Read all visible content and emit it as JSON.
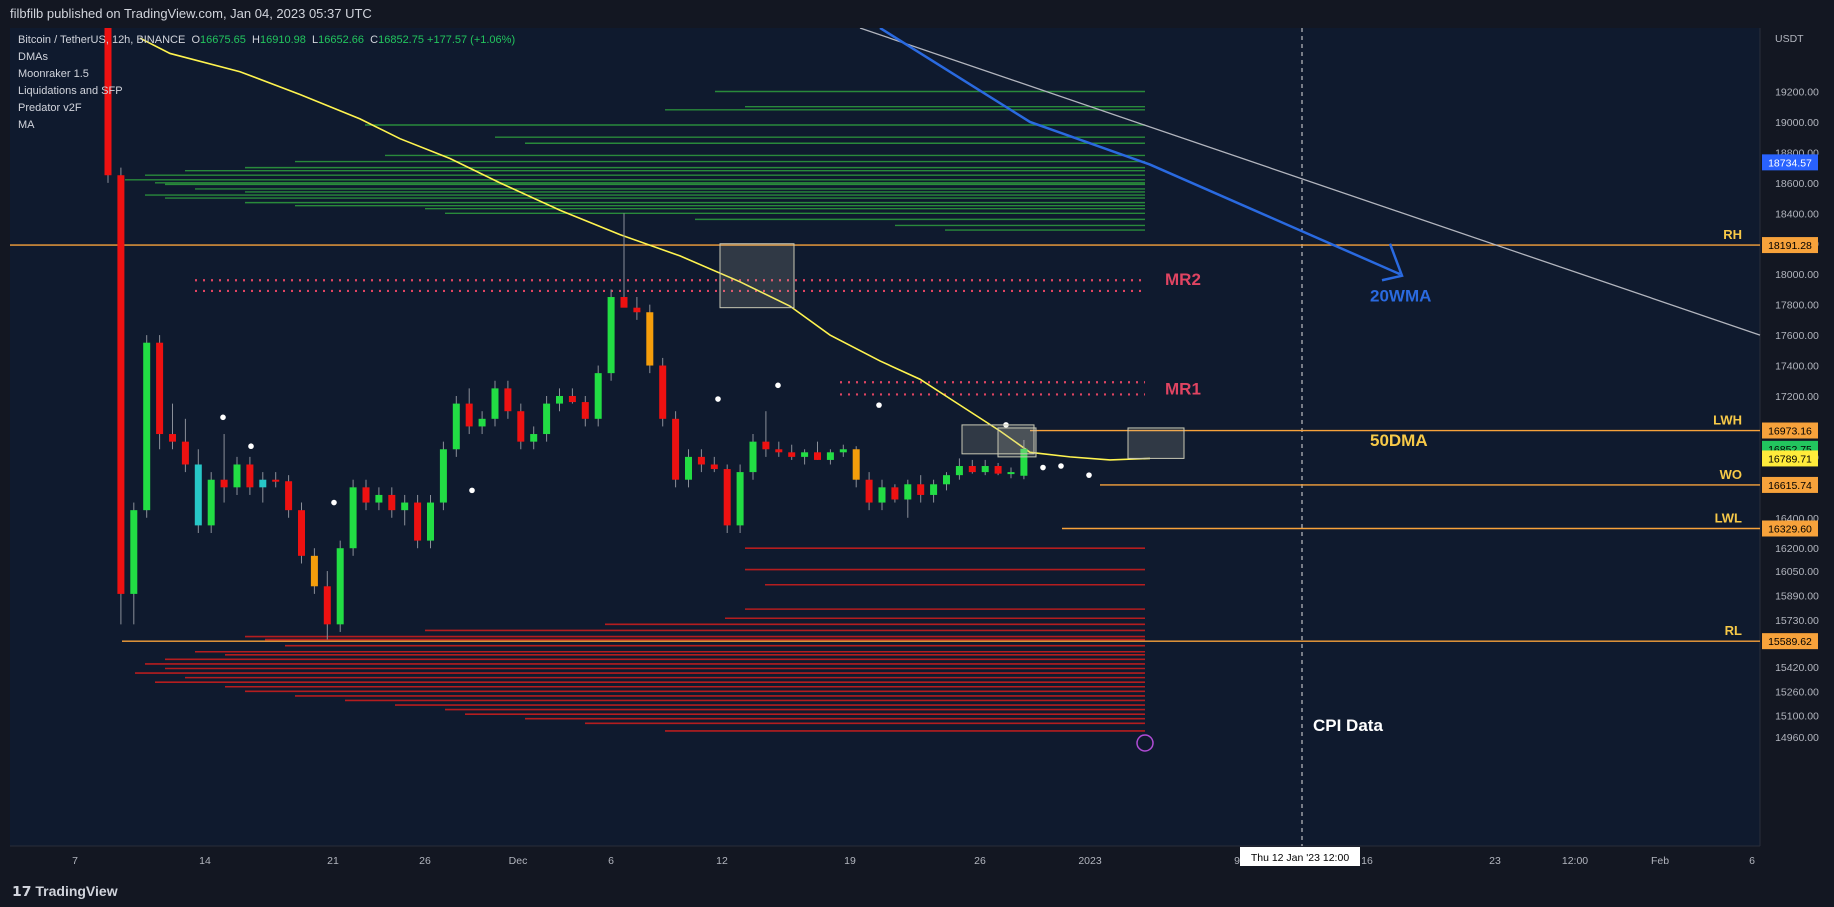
{
  "header": {
    "publisher_line": "filbfilb published on TradingView.com, Jan 04, 2023 05:37 UTC"
  },
  "footer": {
    "brand": "TradingView"
  },
  "legend": {
    "symbol": "Bitcoin / TetherUS, 12h, BINANCE",
    "ohlc": {
      "o_label": "O",
      "o": "16675.65",
      "h_label": "H",
      "h": "16910.98",
      "l_label": "L",
      "l": "16652.66",
      "c_label": "C",
      "c": "16852.75",
      "chg": "+177.57 (+1.06%)"
    },
    "indicators": [
      "DMAs",
      "Moonraker 1.5",
      "Liquidations and SFP",
      "Predator v2F",
      "MA"
    ]
  },
  "chart_data": {
    "type": "candlestick",
    "currency_label": "USDT",
    "y_ticks": [
      19200,
      19000,
      18800,
      18600,
      18400,
      18200,
      18000,
      17800,
      17600,
      17400,
      17200,
      16800,
      16400,
      16200,
      16050,
      15890,
      15730,
      15420,
      15260,
      15100,
      14960
    ],
    "ylim": [
      14900,
      19300
    ],
    "x_ticks": [
      "7",
      "14",
      "21",
      "26",
      "Dec",
      "6",
      "12",
      "19",
      "26",
      "2023",
      "9",
      "16",
      "23",
      "12:00",
      "Feb",
      "6"
    ],
    "crosshair_date": "Thu 12 Jan '23   12:00",
    "levels": [
      {
        "label": "RH",
        "value": 18191.28
      },
      {
        "label": "LWH",
        "value": 16973.16
      },
      {
        "label": "WO",
        "value": 16615.74
      },
      {
        "label": "LWL",
        "value": 16329.6
      },
      {
        "label": "RL",
        "value": 15589.62
      }
    ],
    "price_tags": [
      {
        "value": 18734.57,
        "text": "18734.57",
        "color": "#2962ff",
        "text_color": "#ffffff"
      },
      {
        "value": 16852.75,
        "text": "16852.75",
        "color": "#22c55e",
        "text_color": "#000000"
      },
      {
        "value": 16789.71,
        "text": "16789.71",
        "color": "#ffeb3b",
        "text_color": "#000000"
      }
    ],
    "annotations": [
      "MR2",
      "MR1",
      "20WMA",
      "50DMA",
      "CPI Data"
    ],
    "candles": [
      {
        "o": 19900,
        "h": 19900,
        "l": 18600,
        "c": 18650
      },
      {
        "o": 18650,
        "h": 18700,
        "l": 15700,
        "c": 15900
      },
      {
        "o": 15900,
        "h": 16500,
        "l": 15700,
        "c": 16450
      },
      {
        "o": 16450,
        "h": 17600,
        "l": 16400,
        "c": 17550
      },
      {
        "o": 17550,
        "h": 17600,
        "l": 16850,
        "c": 16950
      },
      {
        "o": 16950,
        "h": 17150,
        "l": 16850,
        "c": 16900
      },
      {
        "o": 16900,
        "h": 17050,
        "l": 16700,
        "c": 16750
      },
      {
        "o": 16750,
        "h": 16850,
        "l": 16300,
        "c": 16350
      },
      {
        "o": 16350,
        "h": 16700,
        "l": 16300,
        "c": 16650
      },
      {
        "o": 16650,
        "h": 16950,
        "l": 16500,
        "c": 16600
      },
      {
        "o": 16600,
        "h": 16800,
        "l": 16550,
        "c": 16750
      },
      {
        "o": 16750,
        "h": 16800,
        "l": 16550,
        "c": 16600
      },
      {
        "o": 16600,
        "h": 16700,
        "l": 16500,
        "c": 16650
      },
      {
        "o": 16650,
        "h": 16700,
        "l": 16600,
        "c": 16640
      },
      {
        "o": 16640,
        "h": 16680,
        "l": 16400,
        "c": 16450
      },
      {
        "o": 16450,
        "h": 16500,
        "l": 16100,
        "c": 16150
      },
      {
        "o": 16150,
        "h": 16200,
        "l": 15900,
        "c": 15950
      },
      {
        "o": 15950,
        "h": 16050,
        "l": 15600,
        "c": 15700
      },
      {
        "o": 15700,
        "h": 16250,
        "l": 15650,
        "c": 16200
      },
      {
        "o": 16200,
        "h": 16650,
        "l": 16150,
        "c": 16600
      },
      {
        "o": 16600,
        "h": 16650,
        "l": 16450,
        "c": 16500
      },
      {
        "o": 16500,
        "h": 16600,
        "l": 16450,
        "c": 16550
      },
      {
        "o": 16550,
        "h": 16600,
        "l": 16400,
        "c": 16450
      },
      {
        "o": 16450,
        "h": 16550,
        "l": 16350,
        "c": 16500
      },
      {
        "o": 16500,
        "h": 16550,
        "l": 16200,
        "c": 16250
      },
      {
        "o": 16250,
        "h": 16550,
        "l": 16200,
        "c": 16500
      },
      {
        "o": 16500,
        "h": 16900,
        "l": 16450,
        "c": 16850
      },
      {
        "o": 16850,
        "h": 17200,
        "l": 16800,
        "c": 17150
      },
      {
        "o": 17150,
        "h": 17250,
        "l": 16950,
        "c": 17000
      },
      {
        "o": 17000,
        "h": 17100,
        "l": 16950,
        "c": 17050
      },
      {
        "o": 17050,
        "h": 17300,
        "l": 17000,
        "c": 17250
      },
      {
        "o": 17250,
        "h": 17300,
        "l": 17050,
        "c": 17100
      },
      {
        "o": 17100,
        "h": 17150,
        "l": 16850,
        "c": 16900
      },
      {
        "o": 16900,
        "h": 17000,
        "l": 16850,
        "c": 16950
      },
      {
        "o": 16950,
        "h": 17200,
        "l": 16900,
        "c": 17150
      },
      {
        "o": 17150,
        "h": 17250,
        "l": 17100,
        "c": 17200
      },
      {
        "o": 17200,
        "h": 17250,
        "l": 17150,
        "c": 17160
      },
      {
        "o": 17160,
        "h": 17200,
        "l": 17000,
        "c": 17050
      },
      {
        "o": 17050,
        "h": 17400,
        "l": 17000,
        "c": 17350
      },
      {
        "o": 17350,
        "h": 17900,
        "l": 17300,
        "c": 17850
      },
      {
        "o": 17850,
        "h": 18400,
        "l": 17800,
        "c": 17780
      },
      {
        "o": 17780,
        "h": 17850,
        "l": 17700,
        "c": 17750
      },
      {
        "o": 17750,
        "h": 17800,
        "l": 17350,
        "c": 17400
      },
      {
        "o": 17400,
        "h": 17450,
        "l": 17000,
        "c": 17050
      },
      {
        "o": 17050,
        "h": 17100,
        "l": 16600,
        "c": 16650
      },
      {
        "o": 16650,
        "h": 16850,
        "l": 16600,
        "c": 16800
      },
      {
        "o": 16800,
        "h": 16850,
        "l": 16700,
        "c": 16750
      },
      {
        "o": 16750,
        "h": 16800,
        "l": 16700,
        "c": 16720
      },
      {
        "o": 16720,
        "h": 16750,
        "l": 16300,
        "c": 16350
      },
      {
        "o": 16350,
        "h": 16750,
        "l": 16300,
        "c": 16700
      },
      {
        "o": 16700,
        "h": 16950,
        "l": 16650,
        "c": 16900
      },
      {
        "o": 16900,
        "h": 17100,
        "l": 16800,
        "c": 16850
      },
      {
        "o": 16850,
        "h": 16900,
        "l": 16800,
        "c": 16830
      },
      {
        "o": 16830,
        "h": 16880,
        "l": 16780,
        "c": 16800
      },
      {
        "o": 16800,
        "h": 16850,
        "l": 16750,
        "c": 16830
      },
      {
        "o": 16830,
        "h": 16900,
        "l": 16780,
        "c": 16780
      },
      {
        "o": 16780,
        "h": 16850,
        "l": 16750,
        "c": 16830
      },
      {
        "o": 16830,
        "h": 16880,
        "l": 16800,
        "c": 16850
      },
      {
        "o": 16850,
        "h": 16870,
        "l": 16600,
        "c": 16650
      },
      {
        "o": 16650,
        "h": 16700,
        "l": 16450,
        "c": 16500
      },
      {
        "o": 16500,
        "h": 16650,
        "l": 16450,
        "c": 16600
      },
      {
        "o": 16600,
        "h": 16620,
        "l": 16500,
        "c": 16520
      },
      {
        "o": 16520,
        "h": 16650,
        "l": 16400,
        "c": 16620
      },
      {
        "o": 16620,
        "h": 16680,
        "l": 16500,
        "c": 16550
      },
      {
        "o": 16550,
        "h": 16650,
        "l": 16500,
        "c": 16620
      },
      {
        "o": 16620,
        "h": 16700,
        "l": 16580,
        "c": 16680
      },
      {
        "o": 16680,
        "h": 16790,
        "l": 16650,
        "c": 16740
      },
      {
        "o": 16740,
        "h": 16780,
        "l": 16690,
        "c": 16700
      },
      {
        "o": 16700,
        "h": 16780,
        "l": 16680,
        "c": 16740
      },
      {
        "o": 16740,
        "h": 16760,
        "l": 16680,
        "c": 16690
      },
      {
        "o": 16690,
        "h": 16730,
        "l": 16660,
        "c": 16700
      },
      {
        "o": 16676,
        "h": 16911,
        "l": 16653,
        "c": 16853
      }
    ]
  }
}
